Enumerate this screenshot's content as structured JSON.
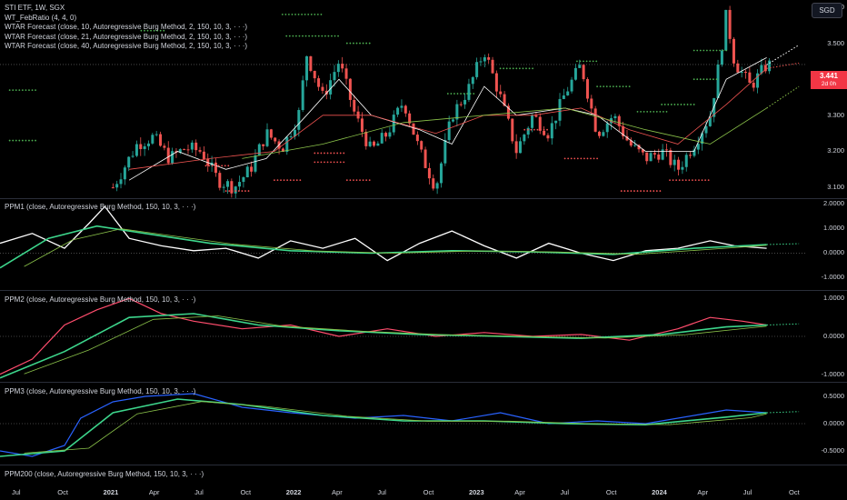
{
  "header": {
    "symbol_line": "STI ETF, 1W, SGX",
    "currency": "SGD"
  },
  "main_legend": [
    "WT_FebRatio (4, 4, 0)",
    "WTAR Forecast (close, 10, Autoregressive Burg Method, 2, 150, 10, 3, · · ·)",
    "WTAR Forecast (close, 21, Autoregressive Burg Method, 2, 150, 10, 3, · · ·)",
    "WTAR Forecast (close, 40, Autoregressive Burg Method, 2, 150, 10, 3, · · ·)"
  ],
  "price_tag": {
    "value": "3.441",
    "countdown": "2d 0h"
  },
  "pane_legends": {
    "ppm1": "PPM1 (close, Autoregressive Burg Method, 150, 10, 3, · · ·)",
    "ppm2": "PPM2 (close, Autoregressive Burg Method, 150, 10, 3, · · ·)",
    "ppm3": "PPM3 (close, Autoregressive Burg Method, 150, 10, 3, · · ·)",
    "ppm200": "PPM200 (close, Autoregressive Burg Method, 150, 10, 3, · · ·)"
  },
  "colors": {
    "up": "#26a69a",
    "down": "#ef5350",
    "dot_green": "#4caf50",
    "dot_red": "#f05050",
    "white": "#ffffff",
    "green_line": "#3dd68c",
    "lime_line": "#8bc34a",
    "pink_line": "#ff4d6d",
    "blue_line": "#2962ff"
  },
  "chart_data": [
    {
      "type": "candlestick",
      "yticks": [
        "3.600",
        "3.500",
        "3.400",
        "3.300",
        "3.200",
        "3.100"
      ],
      "ylim": [
        3.07,
        3.62
      ],
      "xticks": [
        "Jul",
        "Oct",
        "2021",
        "Apr",
        "Jul",
        "Oct",
        "2022",
        "Apr",
        "Jul",
        "Oct",
        "2023",
        "Apr",
        "Jul",
        "Oct",
        "2024",
        "Apr",
        "Jul",
        "Oct"
      ],
      "close_path": [
        [
          0.14,
          3.1
        ],
        [
          0.17,
          3.22
        ],
        [
          0.19,
          3.24
        ],
        [
          0.21,
          3.18
        ],
        [
          0.23,
          3.21
        ],
        [
          0.25,
          3.2
        ],
        [
          0.27,
          3.12
        ],
        [
          0.29,
          3.1
        ],
        [
          0.31,
          3.15
        ],
        [
          0.33,
          3.25
        ],
        [
          0.35,
          3.21
        ],
        [
          0.37,
          3.3
        ],
        [
          0.38,
          3.47
        ],
        [
          0.4,
          3.35
        ],
        [
          0.42,
          3.45
        ],
        [
          0.44,
          3.3
        ],
        [
          0.46,
          3.2
        ],
        [
          0.48,
          3.25
        ],
        [
          0.5,
          3.34
        ],
        [
          0.52,
          3.2
        ],
        [
          0.54,
          3.1
        ],
        [
          0.56,
          3.3
        ],
        [
          0.58,
          3.37
        ],
        [
          0.6,
          3.48
        ],
        [
          0.62,
          3.35
        ],
        [
          0.64,
          3.2
        ],
        [
          0.66,
          3.3
        ],
        [
          0.68,
          3.25
        ],
        [
          0.7,
          3.36
        ],
        [
          0.72,
          3.44
        ],
        [
          0.74,
          3.25
        ],
        [
          0.76,
          3.3
        ],
        [
          0.78,
          3.22
        ],
        [
          0.8,
          3.18
        ],
        [
          0.82,
          3.2
        ],
        [
          0.84,
          3.15
        ],
        [
          0.86,
          3.22
        ],
        [
          0.88,
          3.3
        ],
        [
          0.89,
          3.43
        ],
        [
          0.9,
          3.58
        ],
        [
          0.91,
          3.45
        ],
        [
          0.93,
          3.38
        ],
        [
          0.95,
          3.44
        ]
      ],
      "ma_fast": [
        [
          0.16,
          3.12
        ],
        [
          0.22,
          3.2
        ],
        [
          0.28,
          3.15
        ],
        [
          0.33,
          3.18
        ],
        [
          0.38,
          3.3
        ],
        [
          0.42,
          3.4
        ],
        [
          0.46,
          3.3
        ],
        [
          0.52,
          3.26
        ],
        [
          0.56,
          3.22
        ],
        [
          0.6,
          3.38
        ],
        [
          0.64,
          3.3
        ],
        [
          0.7,
          3.32
        ],
        [
          0.74,
          3.3
        ],
        [
          0.8,
          3.2
        ],
        [
          0.86,
          3.2
        ],
        [
          0.9,
          3.4
        ],
        [
          0.95,
          3.46
        ]
      ],
      "ma_slow": [
        [
          0.16,
          3.15
        ],
        [
          0.26,
          3.18
        ],
        [
          0.34,
          3.2
        ],
        [
          0.4,
          3.3
        ],
        [
          0.46,
          3.3
        ],
        [
          0.54,
          3.25
        ],
        [
          0.6,
          3.3
        ],
        [
          0.66,
          3.3
        ],
        [
          0.72,
          3.32
        ],
        [
          0.78,
          3.26
        ],
        [
          0.84,
          3.22
        ],
        [
          0.9,
          3.33
        ],
        [
          0.95,
          3.43
        ]
      ],
      "ma_long": [
        [
          0.3,
          3.18
        ],
        [
          0.4,
          3.22
        ],
        [
          0.5,
          3.28
        ],
        [
          0.6,
          3.3
        ],
        [
          0.7,
          3.32
        ],
        [
          0.8,
          3.26
        ],
        [
          0.88,
          3.22
        ],
        [
          0.95,
          3.32
        ]
      ]
    },
    {
      "type": "line",
      "name": "PPM1",
      "yticks": [
        "2.0000",
        "1.0000",
        "0.0000",
        "-1.0000"
      ],
      "ylim": [
        -1.5,
        2.2
      ],
      "white_wave": [
        [
          0.0,
          0.4
        ],
        [
          0.04,
          0.8
        ],
        [
          0.08,
          0.2
        ],
        [
          0.11,
          1.2
        ],
        [
          0.13,
          1.9
        ],
        [
          0.16,
          0.6
        ],
        [
          0.2,
          0.3
        ],
        [
          0.24,
          0.1
        ],
        [
          0.28,
          0.2
        ],
        [
          0.32,
          -0.2
        ],
        [
          0.36,
          0.5
        ],
        [
          0.4,
          0.2
        ],
        [
          0.44,
          0.6
        ],
        [
          0.48,
          -0.3
        ],
        [
          0.52,
          0.4
        ],
        [
          0.56,
          0.9
        ],
        [
          0.6,
          0.3
        ],
        [
          0.64,
          -0.2
        ],
        [
          0.68,
          0.4
        ],
        [
          0.72,
          0.0
        ],
        [
          0.76,
          -0.3
        ],
        [
          0.8,
          0.1
        ],
        [
          0.84,
          0.2
        ],
        [
          0.88,
          0.5
        ],
        [
          0.91,
          0.3
        ],
        [
          0.95,
          0.2
        ]
      ],
      "green_smooth": [
        [
          0.0,
          -0.6
        ],
        [
          0.06,
          0.6
        ],
        [
          0.12,
          1.1
        ],
        [
          0.18,
          0.8
        ],
        [
          0.26,
          0.4
        ],
        [
          0.36,
          0.1
        ],
        [
          0.46,
          0.0
        ],
        [
          0.56,
          0.1
        ],
        [
          0.66,
          0.05
        ],
        [
          0.76,
          -0.05
        ],
        [
          0.86,
          0.2
        ],
        [
          0.95,
          0.35
        ]
      ]
    },
    {
      "type": "line",
      "name": "PPM2",
      "yticks": [
        "1.0000",
        "0.0000",
        "-1.0000"
      ],
      "ylim": [
        -1.2,
        1.2
      ],
      "pink_wave": [
        [
          0.0,
          -1.0
        ],
        [
          0.04,
          -0.6
        ],
        [
          0.08,
          0.3
        ],
        [
          0.12,
          0.7
        ],
        [
          0.16,
          1.0
        ],
        [
          0.2,
          0.6
        ],
        [
          0.24,
          0.4
        ],
        [
          0.3,
          0.2
        ],
        [
          0.36,
          0.3
        ],
        [
          0.42,
          0.0
        ],
        [
          0.48,
          0.2
        ],
        [
          0.54,
          0.0
        ],
        [
          0.6,
          0.1
        ],
        [
          0.66,
          0.0
        ],
        [
          0.72,
          0.05
        ],
        [
          0.78,
          -0.1
        ],
        [
          0.84,
          0.2
        ],
        [
          0.88,
          0.5
        ],
        [
          0.92,
          0.4
        ],
        [
          0.95,
          0.3
        ]
      ],
      "green_smooth": [
        [
          0.0,
          -1.1
        ],
        [
          0.08,
          -0.4
        ],
        [
          0.16,
          0.5
        ],
        [
          0.24,
          0.6
        ],
        [
          0.32,
          0.3
        ],
        [
          0.42,
          0.15
        ],
        [
          0.52,
          0.05
        ],
        [
          0.62,
          0.0
        ],
        [
          0.72,
          -0.05
        ],
        [
          0.82,
          0.05
        ],
        [
          0.9,
          0.25
        ],
        [
          0.95,
          0.3
        ]
      ]
    },
    {
      "type": "line",
      "name": "PPM3",
      "yticks": [
        "0.5000",
        "0.0000",
        "-0.5000"
      ],
      "ylim": [
        -0.75,
        0.75
      ],
      "blue_wave": [
        [
          0.0,
          -0.5
        ],
        [
          0.04,
          -0.6
        ],
        [
          0.08,
          -0.4
        ],
        [
          0.1,
          0.1
        ],
        [
          0.14,
          0.4
        ],
        [
          0.18,
          0.5
        ],
        [
          0.24,
          0.55
        ],
        [
          0.3,
          0.3
        ],
        [
          0.36,
          0.2
        ],
        [
          0.44,
          0.1
        ],
        [
          0.5,
          0.15
        ],
        [
          0.56,
          0.05
        ],
        [
          0.62,
          0.2
        ],
        [
          0.68,
          0.0
        ],
        [
          0.74,
          0.05
        ],
        [
          0.8,
          0.0
        ],
        [
          0.86,
          0.15
        ],
        [
          0.9,
          0.25
        ],
        [
          0.95,
          0.2
        ]
      ],
      "green_smooth": [
        [
          0.0,
          -0.6
        ],
        [
          0.08,
          -0.5
        ],
        [
          0.14,
          0.2
        ],
        [
          0.22,
          0.45
        ],
        [
          0.3,
          0.35
        ],
        [
          0.4,
          0.15
        ],
        [
          0.5,
          0.05
        ],
        [
          0.6,
          0.05
        ],
        [
          0.7,
          0.0
        ],
        [
          0.8,
          -0.02
        ],
        [
          0.9,
          0.12
        ],
        [
          0.95,
          0.2
        ]
      ]
    }
  ]
}
